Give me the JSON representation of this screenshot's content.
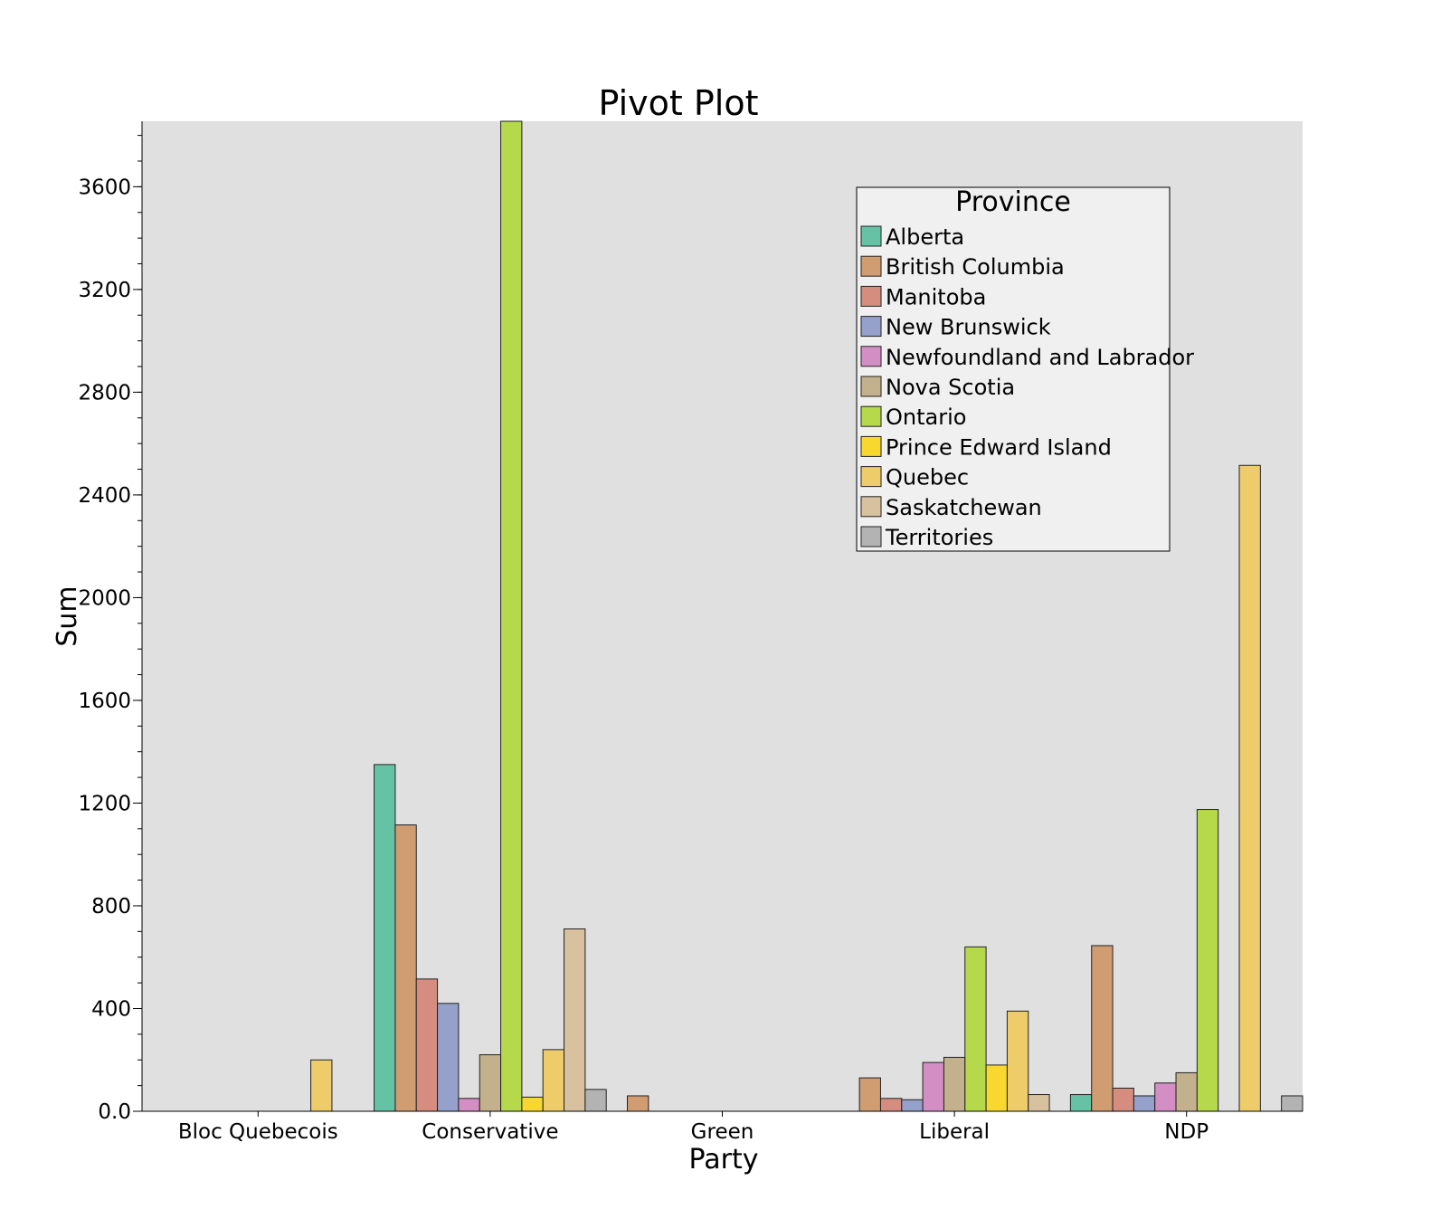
{
  "chart_data": {
    "type": "bar",
    "title": "Pivot Plot",
    "xlabel": "Party",
    "ylabel": "Sum",
    "ylim": [
      0,
      3855
    ],
    "yticks": [
      {
        "value": 0,
        "label": "0.0"
      },
      {
        "value": 400,
        "label": "400"
      },
      {
        "value": 800,
        "label": "800"
      },
      {
        "value": 1200,
        "label": "1200"
      },
      {
        "value": 1600,
        "label": "1600"
      },
      {
        "value": 2000,
        "label": "2000"
      },
      {
        "value": 2400,
        "label": "2400"
      },
      {
        "value": 2800,
        "label": "2800"
      },
      {
        "value": 3200,
        "label": "3200"
      },
      {
        "value": 3600,
        "label": "3600"
      }
    ],
    "minor_tick_step": 100,
    "grid": false,
    "background_color": "#e0e0e0",
    "legend": {
      "title": "Province",
      "placement": "top-right"
    },
    "categories": [
      "Bloc Quebecois",
      "Conservative",
      "Green",
      "Liberal",
      "NDP"
    ],
    "series": [
      {
        "name": "Alberta",
        "color": "#66c2a5",
        "values": [
          0,
          1350,
          0,
          0,
          65
        ]
      },
      {
        "name": "British Columbia",
        "color": "#d09c71",
        "values": [
          0,
          1115,
          60,
          130,
          645
        ]
      },
      {
        "name": "Manitoba",
        "color": "#d48d7e",
        "values": [
          0,
          515,
          0,
          50,
          90
        ]
      },
      {
        "name": "New Brunswick",
        "color": "#95a0cb",
        "values": [
          0,
          420,
          0,
          45,
          60
        ]
      },
      {
        "name": "Newfoundland and Labrador",
        "color": "#d38fc4",
        "values": [
          0,
          50,
          0,
          190,
          110
        ]
      },
      {
        "name": "Nova Scotia",
        "color": "#c3b08c",
        "values": [
          0,
          220,
          0,
          210,
          150
        ]
      },
      {
        "name": "Ontario",
        "color": "#b6d84b",
        "values": [
          0,
          3855,
          0,
          640,
          1175
        ]
      },
      {
        "name": "Prince Edward Island",
        "color": "#f8d82f",
        "values": [
          0,
          55,
          0,
          180,
          0
        ]
      },
      {
        "name": "Quebec",
        "color": "#efcc6a",
        "values": [
          200,
          240,
          0,
          390,
          2515
        ]
      },
      {
        "name": "Saskatchewan",
        "color": "#d8c19f",
        "values": [
          0,
          710,
          0,
          65,
          0
        ]
      },
      {
        "name": "Territories",
        "color": "#b3b3b3",
        "values": [
          0,
          85,
          0,
          0,
          60
        ]
      }
    ]
  }
}
